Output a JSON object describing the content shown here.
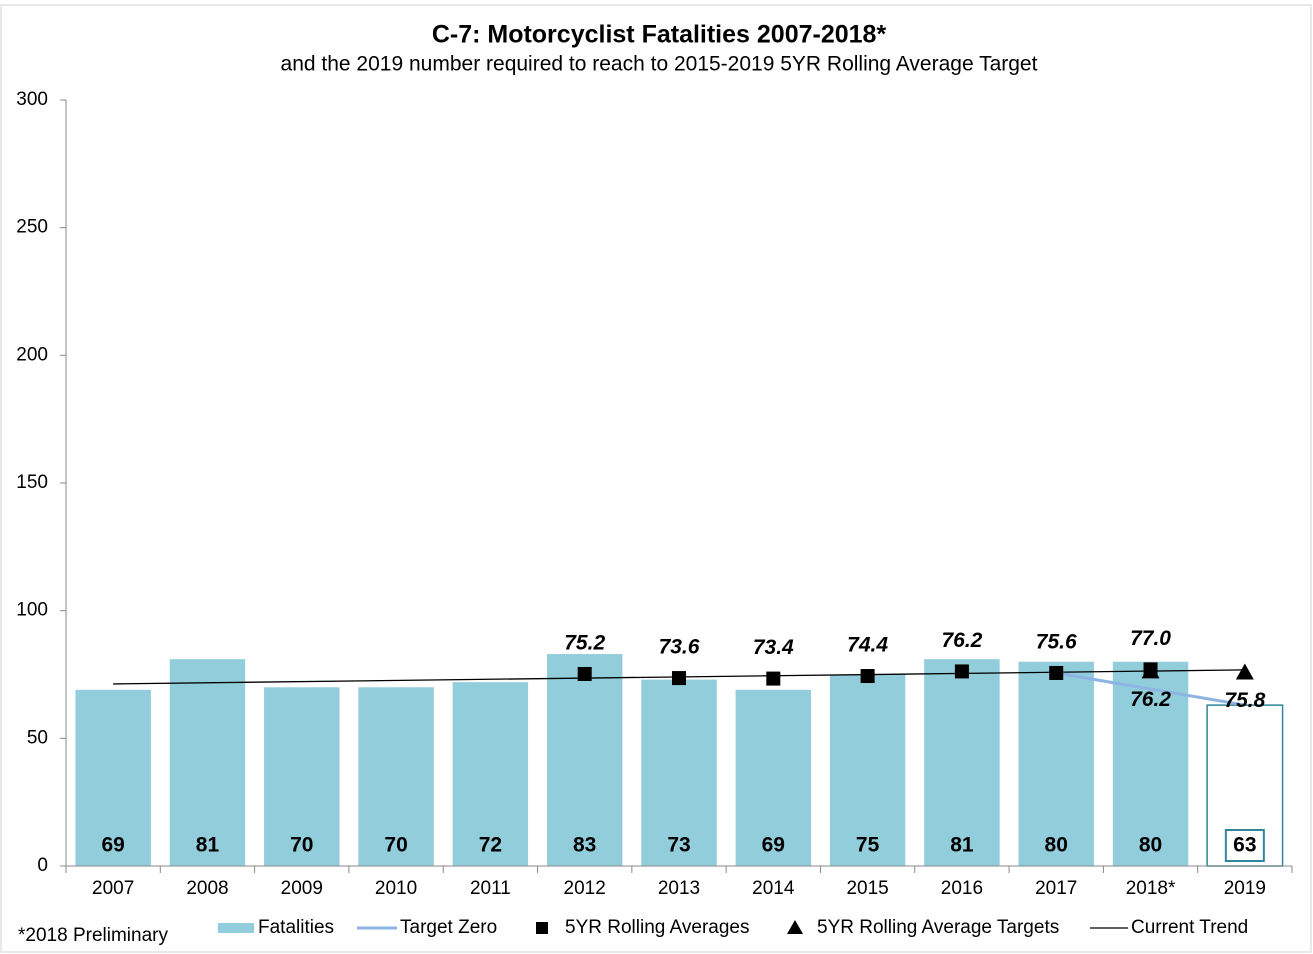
{
  "chart_data": {
    "type": "bar",
    "title": "C-7: Motorcyclist Fatalities 2007-2018*",
    "subtitle": "and the 2019 number required to reach to 2015-2019 5YR Rolling Average Target",
    "footnote": "*2018 Preliminary",
    "categories": [
      "2007",
      "2008",
      "2009",
      "2010",
      "2011",
      "2012",
      "2013",
      "2014",
      "2015",
      "2016",
      "2017",
      "2018*",
      "2019"
    ],
    "ylim": [
      0,
      300
    ],
    "yticks": [
      0,
      50,
      100,
      150,
      200,
      250,
      300
    ],
    "grid": false,
    "bars": {
      "name": "Fatalities",
      "color": "#92cddc",
      "outline_color": "#31859c",
      "outlined": [
        "2019"
      ],
      "values": [
        69,
        81,
        70,
        70,
        72,
        83,
        73,
        69,
        75,
        81,
        80,
        80,
        63
      ]
    },
    "target_zero": {
      "name": "Target Zero",
      "color": "#8eb4e3",
      "values": [
        null,
        null,
        null,
        null,
        null,
        null,
        null,
        null,
        null,
        null,
        75.6,
        69.3,
        63
      ]
    },
    "rolling_averages": {
      "name": "5YR Rolling Averages",
      "color": "#000000",
      "values": [
        null,
        null,
        null,
        null,
        null,
        75.2,
        73.6,
        73.4,
        74.4,
        76.2,
        75.6,
        77.0,
        null
      ],
      "value_labels": [
        null,
        null,
        null,
        null,
        null,
        "75.2",
        "73.6",
        "73.4",
        "74.4",
        "76.2",
        "75.6",
        "77.0",
        null
      ]
    },
    "rolling_targets": {
      "name": "5YR Rolling Average Targets",
      "color": "#000000",
      "values": [
        null,
        null,
        null,
        null,
        null,
        null,
        null,
        null,
        null,
        null,
        null,
        76.2,
        75.8
      ]
    },
    "trend": {
      "name": "Current Trend",
      "color": "#000000",
      "from": 71.3,
      "to": 76.8
    }
  }
}
